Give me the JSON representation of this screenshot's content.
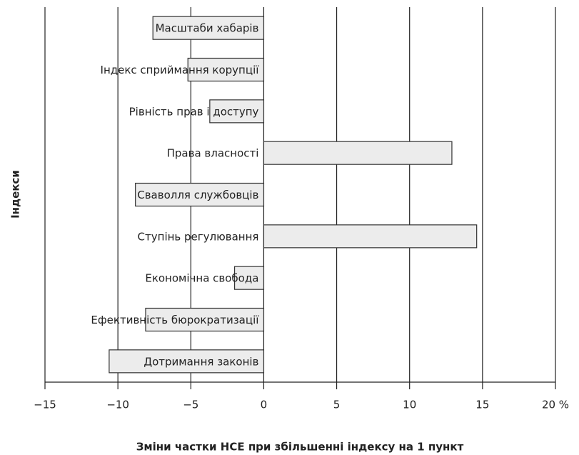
{
  "chart_data": {
    "type": "bar",
    "orientation": "horizontal",
    "ylabel": "Індекси",
    "xlabel": "Зміни частки НСЕ при збільшенні індексу на 1 пункт",
    "categories": [
      "Масштаби хабарів",
      "Індекс сприймання корупції",
      "Рівність прав і доступу",
      "Права власності",
      "Сваволля службовців",
      "Ступінь регулювання",
      "Економічна свобода",
      "Ефективність бюрократизації",
      "Дотримання законів"
    ],
    "values": [
      -7.6,
      -5.2,
      -3.7,
      12.9,
      -8.8,
      14.6,
      -2.0,
      -8.1,
      -10.6
    ],
    "color": "#ececec",
    "xlim": [
      -15,
      20
    ],
    "xticks": [
      {
        "value": -15,
        "label": "−15"
      },
      {
        "value": -10,
        "label": "−10"
      },
      {
        "value": -5,
        "label": "−5"
      },
      0,
      5,
      10,
      15,
      {
        "value": 20,
        "label": "20 %"
      }
    ],
    "grid": true
  }
}
